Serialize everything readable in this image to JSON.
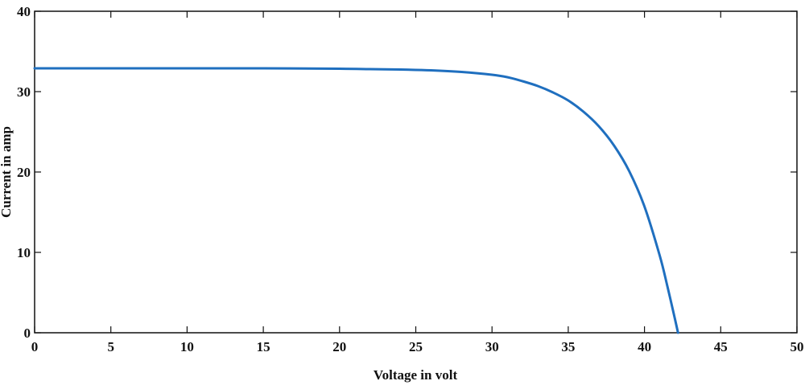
{
  "chart_data": {
    "type": "line",
    "title": "",
    "xlabel": "Voltage in volt",
    "ylabel": "Current in amp",
    "xlim": [
      0,
      50
    ],
    "ylim": [
      0,
      40
    ],
    "x_ticks": [
      0,
      5,
      10,
      15,
      20,
      25,
      30,
      35,
      40,
      45,
      50
    ],
    "y_ticks": [
      0,
      10,
      20,
      30,
      40
    ],
    "x_tick_labels": [
      "0",
      "5",
      "10",
      "15",
      "20",
      "25",
      "30",
      "35",
      "40",
      "45",
      "50"
    ],
    "y_tick_labels": [
      "0",
      "10",
      "20",
      "30",
      "40"
    ],
    "grid": false,
    "legend": false,
    "series": [
      {
        "color": "#1f6fbf",
        "x": [
          0,
          5,
          10,
          15,
          20,
          22,
          24,
          26,
          28,
          30,
          31,
          32,
          33,
          34,
          35,
          36,
          37,
          38,
          39,
          40,
          41,
          41.5,
          42,
          42.2
        ],
        "y": [
          32.9,
          32.9,
          32.9,
          32.9,
          32.85,
          32.8,
          32.75,
          32.65,
          32.45,
          32.1,
          31.8,
          31.3,
          30.7,
          29.9,
          28.9,
          27.5,
          25.7,
          23.3,
          20.1,
          15.7,
          9.6,
          5.8,
          1.7,
          0
        ]
      }
    ]
  }
}
